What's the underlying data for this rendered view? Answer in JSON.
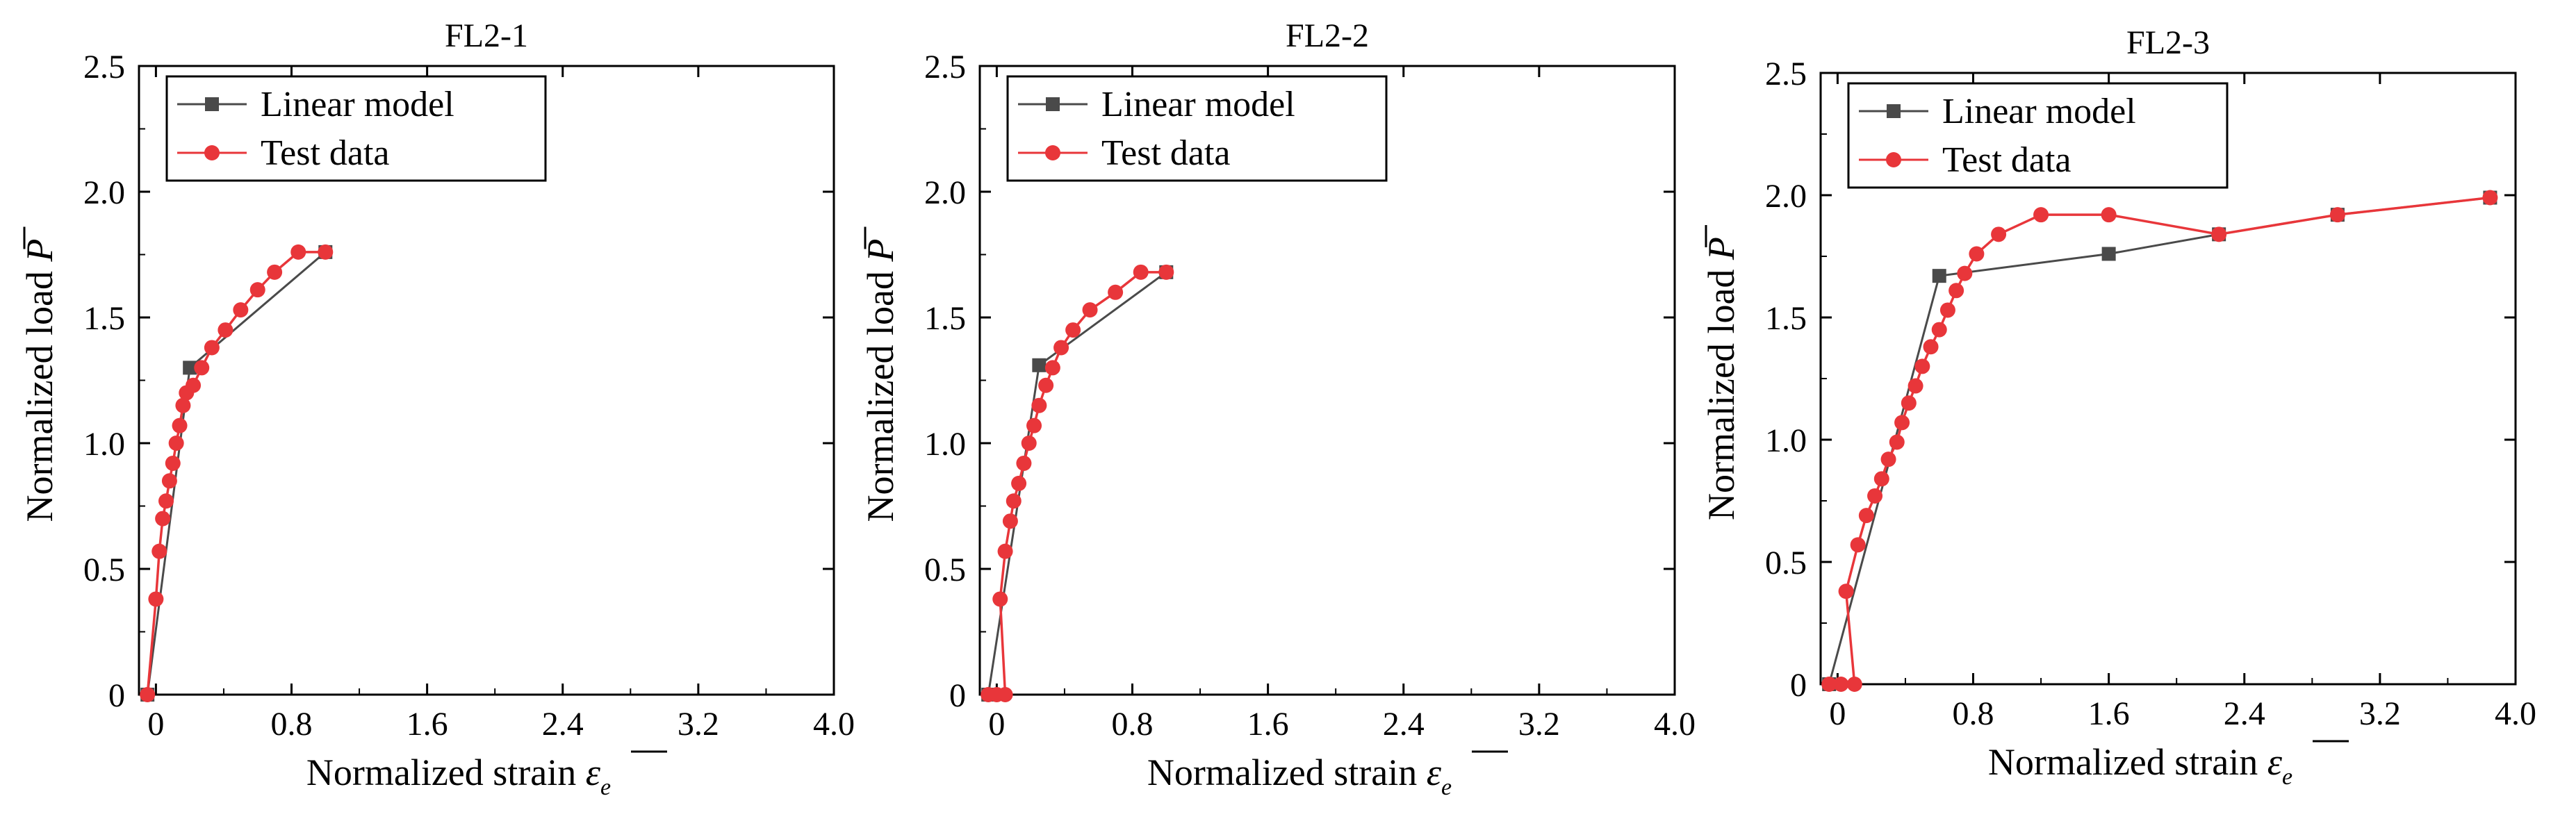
{
  "figure_label": "Normalized load vs. normalized strain for FL2 specimens",
  "colors": {
    "linear": "#4a4a4a",
    "test": "#e8363a",
    "axis": "#000000"
  },
  "chart_data": [
    {
      "id": "fl2-1",
      "type": "line",
      "title": "FL2-1",
      "xlabel": "Normalized strain",
      "ylabel": "Normalized load",
      "x_symbol": "ε",
      "x_subscript": "e",
      "y_symbol": "P",
      "xlim": [
        -0.1,
        4.0
      ],
      "ylim": [
        0,
        2.5
      ],
      "xticks": [
        "0",
        "0.8",
        "1.6",
        "2.4",
        "3.2",
        "4.0"
      ],
      "xtick_values": [
        0,
        0.8,
        1.6,
        2.4,
        3.2,
        4.0
      ],
      "yticks": [
        "0",
        "0.5",
        "1.0",
        "1.5",
        "2.0",
        "2.5"
      ],
      "ytick_values": [
        0,
        0.5,
        1.0,
        1.5,
        2.0,
        2.5
      ],
      "legend": [
        "Linear model",
        "Test data"
      ],
      "legend_position": "top-left",
      "series": [
        {
          "name": "Linear model",
          "x": [
            -0.05,
            0.2,
            1.0
          ],
          "y": [
            0,
            1.3,
            1.76
          ]
        },
        {
          "name": "Test data",
          "x": [
            -0.05,
            0.0,
            0.02,
            0.04,
            0.06,
            0.08,
            0.1,
            0.12,
            0.14,
            0.16,
            0.18,
            0.22,
            0.27,
            0.33,
            0.41,
            0.5,
            0.6,
            0.7,
            0.84,
            1.0
          ],
          "y": [
            0,
            0.38,
            0.57,
            0.7,
            0.77,
            0.85,
            0.92,
            1.0,
            1.07,
            1.15,
            1.2,
            1.23,
            1.3,
            1.38,
            1.45,
            1.53,
            1.61,
            1.68,
            1.76,
            1.76
          ]
        }
      ]
    },
    {
      "id": "fl2-2",
      "type": "line",
      "title": "FL2-2",
      "xlabel": "Normalized strain",
      "ylabel": "Normalized load",
      "x_symbol": "ε",
      "x_subscript": "e",
      "y_symbol": "P",
      "xlim": [
        -0.1,
        4.0
      ],
      "ylim": [
        0,
        2.5
      ],
      "xticks": [
        "0",
        "0.8",
        "1.6",
        "2.4",
        "3.2",
        "4.0"
      ],
      "xtick_values": [
        0,
        0.8,
        1.6,
        2.4,
        3.2,
        4.0
      ],
      "yticks": [
        "0",
        "0.5",
        "1.0",
        "1.5",
        "2.0",
        "2.5"
      ],
      "ytick_values": [
        0,
        0.5,
        1.0,
        1.5,
        2.0,
        2.5
      ],
      "legend": [
        "Linear model",
        "Test data"
      ],
      "legend_position": "top-left",
      "series": [
        {
          "name": "Linear model",
          "x": [
            -0.05,
            0.25,
            1.0
          ],
          "y": [
            0,
            1.31,
            1.68
          ]
        },
        {
          "name": "Test data",
          "x": [
            -0.05,
            0.0,
            0.05,
            0.02,
            0.05,
            0.08,
            0.1,
            0.13,
            0.16,
            0.19,
            0.22,
            0.25,
            0.29,
            0.33,
            0.38,
            0.45,
            0.55,
            0.7,
            0.85,
            1.0
          ],
          "y": [
            0,
            0,
            0,
            0.38,
            0.57,
            0.69,
            0.77,
            0.84,
            0.92,
            1.0,
            1.07,
            1.15,
            1.23,
            1.3,
            1.38,
            1.45,
            1.53,
            1.6,
            1.68,
            1.68
          ]
        }
      ]
    },
    {
      "id": "fl2-3",
      "type": "line",
      "title": "FL2-3",
      "xlabel": "Normalized strain",
      "ylabel": "Normalized load",
      "x_symbol": "ε",
      "x_subscript": "e",
      "y_symbol": "P",
      "xlim": [
        -0.1,
        4.0
      ],
      "ylim": [
        0,
        2.5
      ],
      "xticks": [
        "0",
        "0.8",
        "1.6",
        "2.4",
        "3.2",
        "4.0"
      ],
      "xtick_values": [
        0,
        0.8,
        1.6,
        2.4,
        3.2,
        4.0
      ],
      "yticks": [
        "0",
        "0.5",
        "1.0",
        "1.5",
        "2.0",
        "2.5"
      ],
      "ytick_values": [
        0,
        0.5,
        1.0,
        1.5,
        2.0,
        2.5
      ],
      "legend": [
        "Linear model",
        "Test data"
      ],
      "legend_position": "top-left",
      "series": [
        {
          "name": "Linear model",
          "x": [
            -0.05,
            0.6,
            1.6,
            2.25,
            2.95,
            3.85
          ],
          "y": [
            0,
            1.67,
            1.76,
            1.84,
            1.92,
            1.99
          ]
        },
        {
          "name": "Test data",
          "x": [
            -0.05,
            0.02,
            0.1,
            0.05,
            0.12,
            0.17,
            0.22,
            0.26,
            0.3,
            0.35,
            0.38,
            0.42,
            0.46,
            0.5,
            0.55,
            0.6,
            0.65,
            0.7,
            0.75,
            0.82,
            0.95,
            1.2,
            1.6,
            2.25,
            2.95,
            3.85
          ],
          "y": [
            0,
            0,
            0,
            0.38,
            0.57,
            0.69,
            0.77,
            0.84,
            0.92,
            0.99,
            1.07,
            1.15,
            1.22,
            1.3,
            1.38,
            1.45,
            1.53,
            1.61,
            1.68,
            1.76,
            1.84,
            1.92,
            1.92,
            1.84,
            1.92,
            1.99
          ]
        }
      ]
    }
  ]
}
